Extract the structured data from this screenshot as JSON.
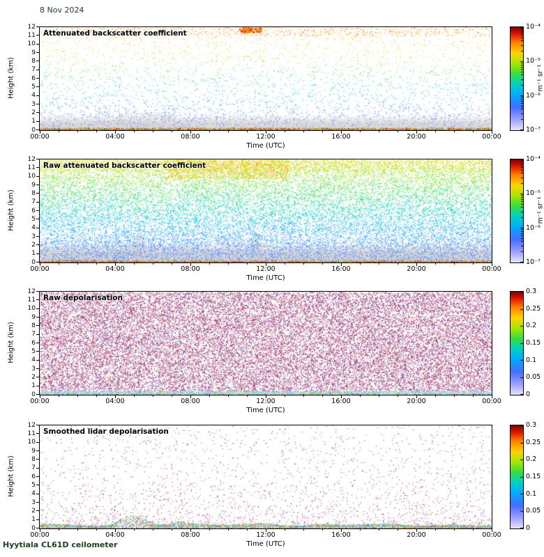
{
  "chart_data": {
    "type": "heatmap",
    "date": "8 Nov 2024",
    "instrument": "Hyytiala CL61D ceilometer",
    "annotation_text_color": "#1f3d23",
    "x_axis": {
      "label": "Time (UTC)",
      "ticks": [
        "00:00",
        "04:00",
        "08:00",
        "12:00",
        "16:00",
        "20:00",
        "00:00"
      ],
      "range_hours": [
        0,
        24
      ],
      "minor_tick_every_hours": 1
    },
    "y_axis": {
      "label": "Height (km)",
      "ticks": [
        "0",
        "1",
        "2",
        "3",
        "4",
        "5",
        "6",
        "7",
        "8",
        "9",
        "10",
        "11",
        "12"
      ],
      "range_km": [
        0,
        12
      ]
    },
    "colormap_stops": [
      [
        0,
        228,
        228,
        255
      ],
      [
        0.1,
        160,
        160,
        255
      ],
      [
        0.22,
        70,
        110,
        255
      ],
      [
        0.34,
        0,
        170,
        255
      ],
      [
        0.45,
        0,
        210,
        190
      ],
      [
        0.55,
        60,
        220,
        60
      ],
      [
        0.65,
        170,
        230,
        0
      ],
      [
        0.75,
        255,
        210,
        0
      ],
      [
        0.85,
        255,
        130,
        0
      ],
      [
        0.93,
        225,
        30,
        0
      ],
      [
        1,
        128,
        0,
        0
      ]
    ],
    "palettes": {
      "magenta": [
        "#8e1a62",
        "#a11a74",
        "#7c1152",
        "#b03286",
        "#951d6b",
        "#6d0d45",
        "#c04898"
      ],
      "cyanband": [
        "#9fd8ee",
        "#7cc8e8",
        "#baeaf4",
        "#5fb8d8",
        "#70c8a8",
        "#c0ecf8",
        "#4898c8"
      ],
      "warmline": [
        "#d42000",
        "#ff6a00",
        "#ffb400",
        "#c00000",
        "#2f9e2f",
        "#e0e000"
      ],
      "bandmix": [
        "#66c6e8",
        "#3aa0d8",
        "#2060c0",
        "#58c878",
        "#2f9e2f",
        "#e8d800",
        "#ff8c00",
        "#d03010",
        "#9fd8ee",
        "#7cc8e8"
      ]
    },
    "panels": [
      {
        "title": "Attenuated backscatter coefficient",
        "colorbar": {
          "scale": "log",
          "labels": [
            "10⁻⁴",
            "10⁻⁵",
            "10⁻⁶",
            "10⁻⁷"
          ],
          "min": "1e-7",
          "max": "1e-4",
          "unit": "m⁻¹ sr⁻¹"
        },
        "render": {
          "seed": 11,
          "layers": [
            {
              "kind": "greyband",
              "solid": 0.8,
              "fade": 1.7,
              "rgb": "220,220,220"
            },
            {
              "kind": "speckle",
              "count": 1400,
              "hmin": 0,
              "hmax": 1.8,
              "colors": [
                "#cccccc",
                "#d6d6d6",
                "#c2c2c2"
              ]
            },
            {
              "kind": "speckle",
              "count": 520,
              "hmin": 0.5,
              "hmax": 2.1,
              "colors": [
                "#d4d4d4",
                "#c8c8c8"
              ],
              "x0": 0.17,
              "x1": 0.3
            },
            {
              "kind": "hline",
              "h": 0.06,
              "color": "rgba(185,45,0,0.9)"
            },
            {
              "kind": "dots",
              "count": 2600,
              "hmode": {
                "type": "uniform",
                "hmin": 0,
                "hmax": 12
              },
              "color": {
                "mode": "heightjet",
                "t0": 0.1,
                "t1": 0.88,
                "jitter": 0.07
              }
            },
            {
              "kind": "dots",
              "count": 1600,
              "hmode": {
                "type": "exp",
                "scale": 2.2
              },
              "color": {
                "mode": "heightjet",
                "t0": 0.1,
                "t1": 0.88,
                "jitter": 0.07
              }
            },
            {
              "kind": "dots",
              "count": 700,
              "hmode": {
                "type": "uniform",
                "hmin": 11,
                "hmax": 12
              },
              "color": {
                "mode": "trange",
                "t0": 0.74,
                "t1": 0.92
              }
            },
            {
              "kind": "dots",
              "count": 170,
              "hmode": {
                "type": "uniform",
                "hmin": 11.4,
                "hmax": 12
              },
              "x0": 0.44,
              "x1": 0.49,
              "color": {
                "mode": "trange",
                "t0": 0.8,
                "t1": 0.95
              },
              "size2": 0.5
            },
            {
              "kind": "dots",
              "count": 2200,
              "hmode": {
                "type": "uniform",
                "hmin": 0,
                "hmax": 0.3
              },
              "color": {
                "mode": "palette",
                "palette": "warmline",
                "accent": 0.2
              }
            }
          ]
        }
      },
      {
        "title": "Raw attenuated backscatter coefficient",
        "colorbar": {
          "scale": "log",
          "labels": [
            "10⁻⁴",
            "10⁻⁵",
            "10⁻⁶",
            "10⁻⁷"
          ],
          "min": "1e-7",
          "max": "1e-4",
          "unit": "m⁻¹ sr⁻¹"
        },
        "render": {
          "seed": 22,
          "layers": [
            {
              "kind": "greyband",
              "solid": 1.1,
              "fade": 2.3,
              "rgb": "215,215,215"
            },
            {
              "kind": "speckle",
              "count": 2600,
              "hmin": 0,
              "hmax": 2.6,
              "colors": [
                "#c8c8c8",
                "#d2d2d2"
              ]
            },
            {
              "kind": "speckle",
              "count": 430,
              "hmin": 0,
              "hmax": 3.1,
              "colors": [
                "#cfcfcf"
              ],
              "x0": 0.205,
              "x1": 0.232
            },
            {
              "kind": "speckle",
              "count": 390,
              "hmin": 0,
              "hmax": 3.4,
              "colors": [
                "#cfcfcf"
              ],
              "x0": 0.468,
              "x1": 0.487
            },
            {
              "kind": "hline",
              "h": 0.06,
              "color": "rgba(185,45,0,0.85)"
            },
            {
              "kind": "dots",
              "count": 23500,
              "hmode": {
                "type": "uniform",
                "hmin": 0,
                "hmax": 12
              },
              "color": {
                "mode": "heightjet",
                "t0": 0.17,
                "t1": 0.7,
                "jitter": 0.1
              }
            },
            {
              "kind": "dots",
              "count": 1700,
              "hmode": {
                "type": "uniform",
                "hmin": 10.6,
                "hmax": 12
              },
              "color": {
                "mode": "trange",
                "t0": 0.6,
                "t1": 0.8
              }
            },
            {
              "kind": "dots",
              "count": 1500,
              "hmode": {
                "type": "uniform",
                "hmin": 9.8,
                "hmax": 12
              },
              "x0": 0.28,
              "x1": 0.55,
              "color": {
                "mode": "trange",
                "t0": 0.66,
                "t1": 0.86
              }
            },
            {
              "kind": "dots",
              "count": 1800,
              "hmode": {
                "type": "uniform",
                "hmin": 0,
                "hmax": 0.25
              },
              "color": {
                "mode": "palette",
                "palette": "warmline",
                "accent": 0.3
              }
            }
          ]
        }
      },
      {
        "title": "Raw depolarisation",
        "colorbar": {
          "scale": "linear",
          "labels": [
            "0.3",
            "0.25",
            "0.2",
            "0.15",
            "0.1",
            "0.05",
            "0"
          ],
          "min": 0,
          "max": 0.3,
          "unit": ""
        },
        "render": {
          "seed": 33,
          "layers": [
            {
              "kind": "dots",
              "count": 34000,
              "hmode": {
                "type": "uniform",
                "hmin": 0,
                "hmax": 12
              },
              "color": {
                "mode": "palette",
                "palette": "magenta",
                "accent": 0.13
              }
            },
            {
              "kind": "greyband",
              "solid": 0.25,
              "fade": 0.5,
              "rgb": "205,230,242"
            },
            {
              "kind": "dots",
              "count": 2400,
              "hmode": {
                "type": "uniform",
                "hmin": 0,
                "hmax": 0.45
              },
              "color": {
                "mode": "palette",
                "palette": "cyanband",
                "accent": 0.08
              }
            },
            {
              "kind": "dots",
              "count": 700,
              "hmode": {
                "type": "uniform",
                "hmin": 0,
                "hmax": 0.12
              },
              "color": {
                "mode": "palette",
                "palette": "warmline",
                "accent": 0.3
              }
            }
          ]
        }
      },
      {
        "title": "Smoothed lidar depolarisation",
        "colorbar": {
          "scale": "linear",
          "labels": [
            "0.3",
            "0.25",
            "0.2",
            "0.15",
            "0.1",
            "0.05",
            "0"
          ],
          "min": 0,
          "max": 0.3,
          "unit": ""
        },
        "render": {
          "seed": 44,
          "layers": [
            {
              "kind": "greyband",
              "solid": 0.3,
              "fade": 0.6,
              "rgb": "228,228,228"
            },
            {
              "kind": "dots",
              "count": 1500,
              "hmode": {
                "type": "uniform",
                "hmin": 0,
                "hmax": 12
              },
              "color": {
                "mode": "palette",
                "palette": "magenta",
                "accent": 0.1
              }
            },
            {
              "kind": "dots",
              "count": 1200,
              "hmode": {
                "type": "exp",
                "scale": 2
              },
              "color": {
                "mode": "palette",
                "palette": "magenta",
                "accent": 0.08
              }
            },
            {
              "kind": "envelope",
              "count": 3400,
              "base": 0.45,
              "wobble": 0.16,
              "bumps": [
                {
                  "x": 0.215,
                  "amp": 1,
                  "w": 0.03
                },
                {
                  "x": 0.185,
                  "amp": 0.5,
                  "w": 0.02
                },
                {
                  "x": 0.31,
                  "amp": 0.3,
                  "w": 0.02
                },
                {
                  "x": 0.5,
                  "amp": 0.25,
                  "w": 0.03
                }
              ],
              "palette": "bandmix"
            },
            {
              "kind": "dots",
              "count": 300,
              "hmode": {
                "type": "uniform",
                "hmin": 0,
                "hmax": 0.1
              },
              "color": {
                "mode": "palette",
                "palette": "warmline",
                "accent": 0.2
              }
            }
          ]
        }
      }
    ]
  }
}
